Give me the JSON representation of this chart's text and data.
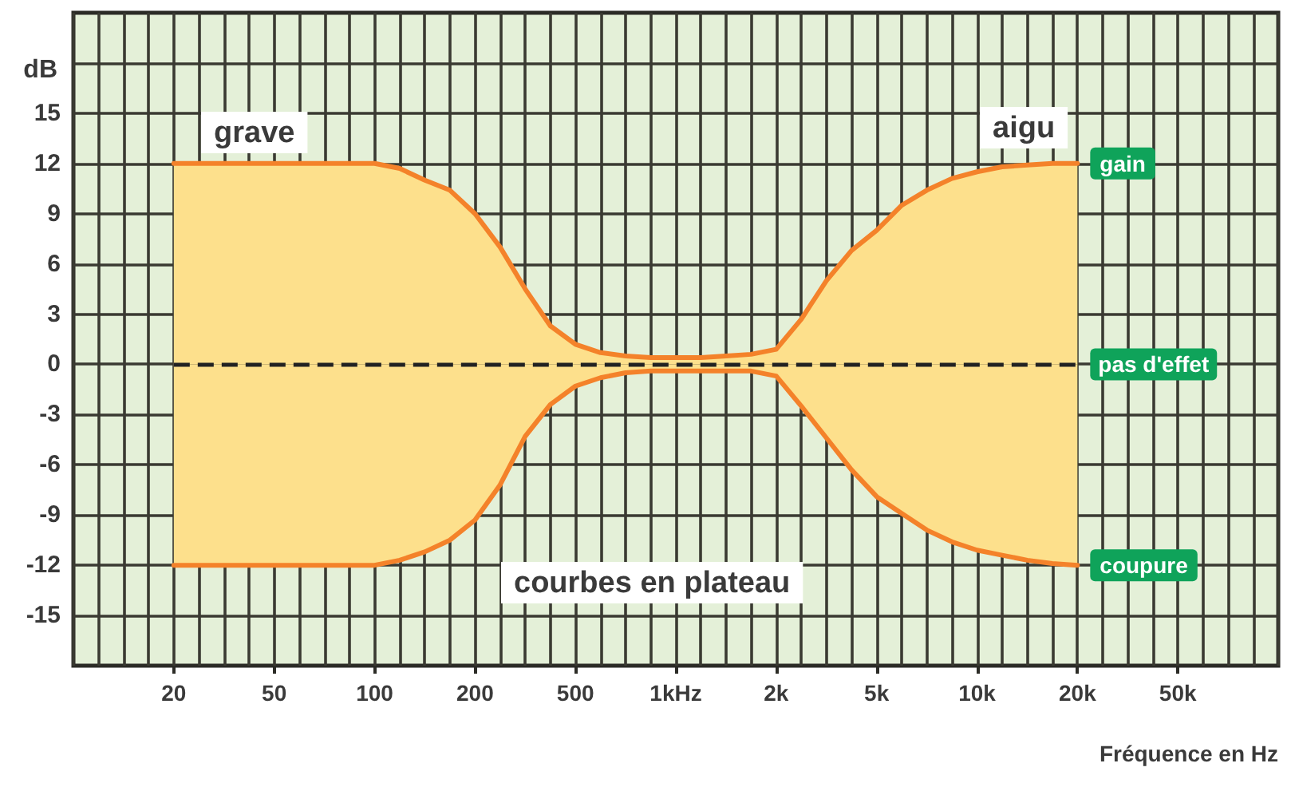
{
  "chart_data": {
    "type": "area",
    "ylabel": "dB",
    "xlabel": "Fréquence en Hz",
    "categories": [
      null,
      null,
      null,
      null,
      "20",
      null,
      null,
      null,
      "50",
      null,
      null,
      null,
      "100",
      null,
      null,
      null,
      "200",
      null,
      null,
      null,
      "500",
      null,
      null,
      null,
      "1kHz",
      null,
      null,
      null,
      "2k",
      null,
      null,
      null,
      "5k",
      null,
      null,
      null,
      "10k",
      null,
      null,
      null,
      "20k",
      null,
      null,
      null,
      "50k",
      null,
      null,
      null,
      null
    ],
    "series": [
      {
        "color": "#f4822a",
        "values": [
          null,
          null,
          null,
          null,
          12,
          12,
          12,
          12,
          12,
          12,
          12,
          12,
          12,
          11.7,
          11.0,
          10.4,
          9.0,
          7.0,
          4.5,
          2.3,
          1.2,
          0.7,
          0.5,
          0.4,
          0.4,
          0.4,
          0.5,
          0.6,
          0.9,
          2.7,
          5.0,
          6.8,
          8.0,
          9.5,
          10.4,
          11.1,
          11.5,
          11.8,
          11.9,
          12,
          12,
          null,
          null,
          null,
          null,
          null,
          null,
          null,
          null
        ]
      },
      {
        "color": "#f4822a",
        "values": [
          null,
          null,
          null,
          null,
          -12,
          -12,
          -12,
          -12,
          -12,
          -12,
          -12,
          -12,
          -12,
          -11.7,
          -11.2,
          -10.5,
          -9.3,
          -7.2,
          -4.3,
          -2.4,
          -1.3,
          -0.8,
          -0.5,
          -0.4,
          -0.4,
          -0.4,
          -0.4,
          -0.4,
          -0.7,
          -2.5,
          -4.4,
          -6.3,
          -7.9,
          -8.9,
          -9.9,
          -10.6,
          -11.1,
          -11.4,
          -11.7,
          -11.9,
          -12,
          null,
          null,
          null,
          null,
          null,
          null,
          null,
          null
        ]
      }
    ],
    "ylim": [
      -18,
      21
    ],
    "yticks": [
      -15,
      -12,
      -9,
      -6,
      -3,
      0,
      3,
      6,
      9,
      12,
      15,
      {
        "value": 18,
        "label": null
      }
    ],
    "grid": true,
    "marker": "none",
    "line_style": "solid",
    "ref_lines": [
      {
        "axis": "y",
        "value": 0,
        "label": "pas d'effet",
        "line_style": "dashed",
        "color": "#222222"
      }
    ],
    "annotations": [
      "grave",
      "aigu",
      "courbes en plateau",
      {
        "text": "gain",
        "x": "20k",
        "y": 12
      },
      {
        "text": "coupure",
        "x": "20k",
        "y": -12
      }
    ]
  }
}
